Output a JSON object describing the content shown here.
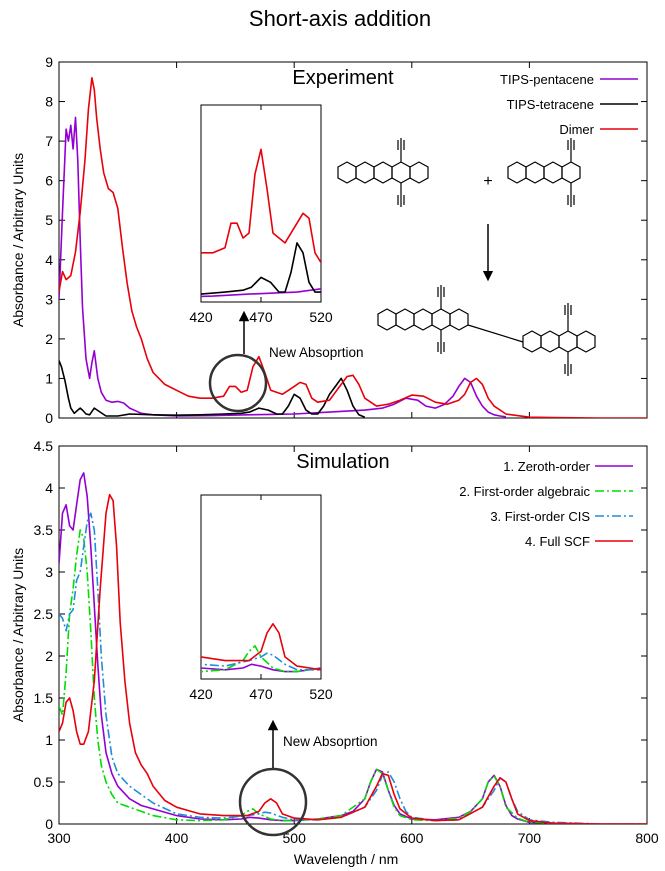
{
  "figure_title": "Short-axis addition",
  "xlabel": "Wavelength / nm",
  "ylabel": "Absorbance / Arbitrary Units",
  "colors": {
    "purple": "#9400d3",
    "black": "#000000",
    "red": "#e8000b",
    "green": "#00dd00",
    "blue": "#1f8ddb",
    "circle": "#333333"
  },
  "chart_data": [
    {
      "type": "line",
      "title": "Experiment",
      "xlim": [
        300,
        800
      ],
      "ylim": [
        0,
        9
      ],
      "xticks": [
        300,
        400,
        500,
        600,
        700,
        800
      ],
      "yticks": [
        0,
        1,
        2,
        3,
        4,
        5,
        6,
        7,
        8,
        9
      ],
      "legend_position": "top-right",
      "series": [
        {
          "name": "TIPS-pentacene",
          "color": "#9400d3",
          "dash": "solid",
          "x": [
            300,
            303,
            306,
            308,
            310,
            312,
            314,
            316,
            318,
            320,
            323,
            326,
            328,
            330,
            333,
            336,
            340,
            345,
            350,
            355,
            360,
            370,
            380,
            400,
            430,
            460,
            480,
            500,
            530,
            560,
            575,
            585,
            595,
            605,
            612,
            620,
            628,
            635,
            640,
            645,
            650,
            655,
            660,
            665,
            670,
            675,
            680
          ],
          "y": [
            3.0,
            5.2,
            7.3,
            7.0,
            7.4,
            6.8,
            7.6,
            6.5,
            4.5,
            2.8,
            1.5,
            1.0,
            1.4,
            1.7,
            1.0,
            0.65,
            0.45,
            0.4,
            0.42,
            0.38,
            0.25,
            0.12,
            0.08,
            0.05,
            0.06,
            0.08,
            0.09,
            0.1,
            0.15,
            0.2,
            0.25,
            0.35,
            0.5,
            0.45,
            0.3,
            0.25,
            0.35,
            0.55,
            0.8,
            1.0,
            0.9,
            0.55,
            0.3,
            0.15,
            0.08,
            0.05,
            0.03
          ]
        },
        {
          "name": "TIPS-tetracene",
          "color": "#000000",
          "dash": "solid",
          "x": [
            300,
            302,
            305,
            308,
            310,
            313,
            316,
            318,
            320,
            323,
            326,
            330,
            335,
            340,
            350,
            360,
            380,
            400,
            420,
            440,
            455,
            462,
            470,
            478,
            485,
            490,
            495,
            500,
            505,
            510,
            515,
            520,
            525,
            530,
            535,
            540,
            545,
            550,
            555,
            560
          ],
          "y": [
            1.45,
            1.3,
            0.95,
            0.5,
            0.25,
            0.12,
            0.2,
            0.25,
            0.2,
            0.1,
            0.08,
            0.25,
            0.15,
            0.05,
            0.05,
            0.1,
            0.08,
            0.07,
            0.08,
            0.1,
            0.12,
            0.15,
            0.25,
            0.2,
            0.1,
            0.1,
            0.3,
            0.6,
            0.5,
            0.2,
            0.1,
            0.1,
            0.3,
            0.6,
            0.8,
            1.0,
            0.7,
            0.3,
            0.08,
            0.02
          ]
        },
        {
          "name": "Dimer",
          "color": "#e8000b",
          "dash": "solid",
          "x": [
            300,
            303,
            306,
            310,
            314,
            318,
            322,
            325,
            328,
            330,
            332,
            335,
            338,
            342,
            346,
            350,
            354,
            358,
            362,
            366,
            370,
            375,
            380,
            390,
            400,
            410,
            420,
            430,
            440,
            445,
            450,
            455,
            460,
            465,
            470,
            475,
            480,
            490,
            500,
            505,
            510,
            515,
            520,
            530,
            540,
            545,
            550,
            555,
            560,
            570,
            580,
            590,
            600,
            610,
            620,
            630,
            640,
            645,
            650,
            655,
            660,
            665,
            670,
            680,
            700,
            720,
            760,
            800
          ],
          "y": [
            3.2,
            3.7,
            3.5,
            3.6,
            4.2,
            5.2,
            6.5,
            7.8,
            8.6,
            8.3,
            7.6,
            6.8,
            6.2,
            5.8,
            5.7,
            5.3,
            4.3,
            3.4,
            2.7,
            2.3,
            2.0,
            1.5,
            1.15,
            0.85,
            0.7,
            0.55,
            0.5,
            0.5,
            0.55,
            0.8,
            0.8,
            0.65,
            0.7,
            1.3,
            1.55,
            1.15,
            0.7,
            0.6,
            0.8,
            0.9,
            0.85,
            0.5,
            0.4,
            0.45,
            0.85,
            1.05,
            1.08,
            0.85,
            0.5,
            0.3,
            0.35,
            0.45,
            0.58,
            0.55,
            0.4,
            0.35,
            0.45,
            0.6,
            0.9,
            1.0,
            0.85,
            0.5,
            0.3,
            0.1,
            0.02,
            0.01,
            0.0,
            0.0
          ]
        }
      ],
      "inset": {
        "xlim": [
          420,
          520
        ],
        "xticks": [
          420,
          470,
          520
        ],
        "ylim": [
          0,
          2
        ]
      },
      "annotation": "New Absoprtion",
      "annotation_circle_center": [
        480,
        0.9
      ],
      "molecules": {
        "plus": "+"
      }
    },
    {
      "type": "line",
      "title": "Simulation",
      "xlim": [
        300,
        800
      ],
      "ylim": [
        0,
        4.5
      ],
      "xticks": [
        300,
        400,
        500,
        600,
        700,
        800
      ],
      "yticks": [
        0,
        0.5,
        1,
        1.5,
        2,
        2.5,
        3,
        3.5,
        4,
        4.5
      ],
      "legend_position": "top-right",
      "series": [
        {
          "name": "1. Zeroth-order",
          "color": "#9400d3",
          "dash": "solid",
          "x": [
            300,
            303,
            306,
            309,
            312,
            315,
            318,
            321,
            324,
            327,
            330,
            333,
            336,
            340,
            345,
            350,
            360,
            370,
            380,
            400,
            420,
            440,
            455,
            462,
            470,
            480,
            490,
            500,
            520,
            540,
            550,
            560,
            565,
            570,
            575,
            580,
            585,
            590,
            600,
            620,
            640,
            650,
            660,
            665,
            670,
            675,
            680,
            685,
            690,
            700,
            720,
            760,
            800
          ],
          "y": [
            3.1,
            3.7,
            3.8,
            3.55,
            3.5,
            3.8,
            4.1,
            4.18,
            3.9,
            3.3,
            2.6,
            1.9,
            1.3,
            0.85,
            0.6,
            0.45,
            0.3,
            0.22,
            0.18,
            0.1,
            0.06,
            0.05,
            0.06,
            0.08,
            0.07,
            0.05,
            0.04,
            0.04,
            0.06,
            0.1,
            0.15,
            0.3,
            0.5,
            0.65,
            0.62,
            0.4,
            0.22,
            0.12,
            0.06,
            0.05,
            0.08,
            0.15,
            0.3,
            0.5,
            0.58,
            0.45,
            0.22,
            0.1,
            0.06,
            0.02,
            0.01,
            0.0,
            0.0
          ]
        },
        {
          "name": "2. First-order algebraic",
          "color": "#00dd00",
          "dash": "dashdot",
          "x": [
            300,
            303,
            306,
            309,
            312,
            315,
            318,
            321,
            324,
            327,
            330,
            333,
            336,
            340,
            345,
            350,
            360,
            370,
            380,
            400,
            420,
            440,
            455,
            460,
            465,
            470,
            480,
            490,
            500,
            520,
            540,
            560,
            565,
            570,
            575,
            580,
            585,
            590,
            600,
            620,
            640,
            650,
            660,
            665,
            670,
            675,
            680,
            690,
            700,
            720,
            760,
            800
          ],
          "y": [
            1.4,
            1.3,
            1.8,
            2.5,
            2.8,
            3.2,
            3.5,
            3.4,
            3.0,
            2.3,
            1.5,
            1.0,
            0.7,
            0.5,
            0.35,
            0.25,
            0.2,
            0.15,
            0.1,
            0.05,
            0.04,
            0.05,
            0.1,
            0.15,
            0.18,
            0.12,
            0.06,
            0.04,
            0.04,
            0.06,
            0.1,
            0.3,
            0.5,
            0.65,
            0.6,
            0.4,
            0.2,
            0.1,
            0.05,
            0.04,
            0.07,
            0.15,
            0.3,
            0.5,
            0.57,
            0.45,
            0.2,
            0.07,
            0.02,
            0.01,
            0.0,
            0.0
          ]
        },
        {
          "name": "3. First-order CIS",
          "color": "#1f8ddb",
          "dash": "dashdot",
          "x": [
            300,
            303,
            306,
            309,
            312,
            315,
            318,
            321,
            324,
            327,
            330,
            333,
            336,
            340,
            345,
            350,
            360,
            370,
            380,
            400,
            420,
            440,
            460,
            470,
            475,
            480,
            490,
            500,
            520,
            540,
            560,
            570,
            575,
            580,
            585,
            590,
            595,
            600,
            620,
            640,
            660,
            670,
            675,
            680,
            685,
            690,
            700,
            720,
            760,
            800
          ],
          "y": [
            2.5,
            2.45,
            2.3,
            2.5,
            2.55,
            2.9,
            3.0,
            3.3,
            3.6,
            3.7,
            3.5,
            2.8,
            2.0,
            1.3,
            0.8,
            0.6,
            0.45,
            0.35,
            0.25,
            0.12,
            0.08,
            0.07,
            0.1,
            0.12,
            0.14,
            0.13,
            0.08,
            0.05,
            0.05,
            0.08,
            0.2,
            0.4,
            0.58,
            0.62,
            0.5,
            0.3,
            0.15,
            0.08,
            0.04,
            0.05,
            0.2,
            0.4,
            0.55,
            0.5,
            0.3,
            0.15,
            0.05,
            0.02,
            0.0,
            0.0
          ]
        },
        {
          "name": "4. Full SCF",
          "color": "#e8000b",
          "dash": "solid",
          "x": [
            300,
            303,
            306,
            309,
            312,
            315,
            318,
            321,
            325,
            330,
            335,
            340,
            343,
            346,
            349,
            352,
            356,
            360,
            365,
            370,
            375,
            380,
            390,
            400,
            410,
            420,
            440,
            460,
            470,
            475,
            480,
            485,
            490,
            500,
            520,
            540,
            560,
            570,
            575,
            580,
            585,
            590,
            600,
            620,
            640,
            660,
            670,
            675,
            680,
            685,
            690,
            700,
            720,
            760,
            800
          ],
          "y": [
            1.1,
            1.2,
            1.45,
            1.5,
            1.35,
            1.1,
            0.95,
            0.95,
            1.1,
            1.7,
            2.8,
            3.7,
            3.92,
            3.85,
            3.3,
            2.4,
            1.7,
            1.2,
            0.85,
            0.7,
            0.6,
            0.45,
            0.28,
            0.2,
            0.16,
            0.12,
            0.1,
            0.1,
            0.15,
            0.25,
            0.3,
            0.25,
            0.12,
            0.07,
            0.05,
            0.08,
            0.2,
            0.45,
            0.6,
            0.58,
            0.35,
            0.18,
            0.07,
            0.04,
            0.05,
            0.2,
            0.45,
            0.55,
            0.5,
            0.3,
            0.12,
            0.04,
            0.01,
            0.0,
            0.0
          ]
        }
      ],
      "inset": {
        "xlim": [
          420,
          520
        ],
        "xticks": [
          420,
          470,
          520
        ],
        "ylim": [
          0,
          1
        ]
      },
      "annotation": "New Absoprtion",
      "annotation_circle_center": [
        480,
        0.27
      ]
    }
  ]
}
